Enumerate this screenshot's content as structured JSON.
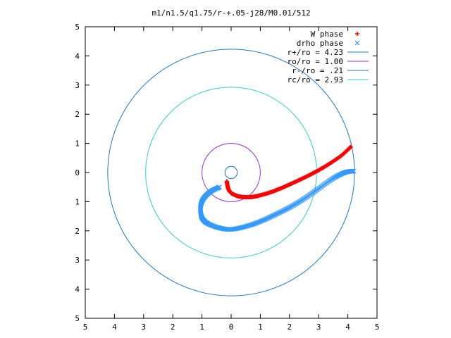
{
  "chart_data": {
    "type": "scatter",
    "title": "m1/n1.5/q1.75/r-+.05-j28/M0.01/512",
    "xlabel": "",
    "ylabel": "",
    "xlim": [
      -5,
      5
    ],
    "ylim": [
      -5,
      5
    ],
    "grid": false,
    "legend_position": "top-right",
    "x_tick_labels": [
      "5",
      "4",
      "3",
      "2",
      "1",
      "0",
      "1",
      "2",
      "3",
      "4",
      "5"
    ],
    "y_tick_labels": [
      "5",
      "4",
      "3",
      "2",
      "1",
      "0",
      "1",
      "2",
      "3",
      "4",
      "5"
    ],
    "series": [
      {
        "name": "W phase",
        "marker": "+",
        "color": "#ff0000",
        "points": [
          [
            -0.15,
            -0.3
          ],
          [
            -0.1,
            -0.55
          ],
          [
            0.0,
            -0.7
          ],
          [
            0.2,
            -0.8
          ],
          [
            0.4,
            -0.84
          ],
          [
            0.7,
            -0.84
          ],
          [
            1.0,
            -0.78
          ],
          [
            1.4,
            -0.66
          ],
          [
            1.8,
            -0.5
          ],
          [
            2.2,
            -0.32
          ],
          [
            2.6,
            -0.13
          ],
          [
            3.0,
            0.08
          ],
          [
            3.4,
            0.32
          ],
          [
            3.8,
            0.6
          ],
          [
            4.1,
            0.88
          ]
        ]
      },
      {
        "name": "drho phase",
        "marker": "x",
        "color": "#3399ff",
        "points": [
          [
            4.2,
            0.05
          ],
          [
            3.9,
            0.0
          ],
          [
            3.5,
            -0.2
          ],
          [
            3.0,
            -0.55
          ],
          [
            2.5,
            -0.9
          ],
          [
            2.0,
            -1.2
          ],
          [
            1.5,
            -1.45
          ],
          [
            1.0,
            -1.68
          ],
          [
            0.5,
            -1.85
          ],
          [
            0.0,
            -1.95
          ],
          [
            -0.4,
            -1.9
          ],
          [
            -0.8,
            -1.75
          ],
          [
            -1.0,
            -1.55
          ],
          [
            -1.05,
            -1.2
          ],
          [
            -0.95,
            -0.9
          ],
          [
            -0.7,
            -0.65
          ],
          [
            -0.4,
            -0.5
          ]
        ]
      },
      {
        "name": "r+/ro = 4.23",
        "shape": "circle",
        "radius": 4.23,
        "color": "#1f77c8"
      },
      {
        "name": "ro/ro = 1.00",
        "shape": "circle",
        "radius": 1.0,
        "color": "#9933cc"
      },
      {
        "name": "r-/ro = .21",
        "shape": "circle",
        "radius": 0.21,
        "color": "#1f77c8"
      },
      {
        "name": "rc/ro = 2.93",
        "shape": "circle",
        "radius": 2.93,
        "color": "#33cccc"
      }
    ]
  }
}
